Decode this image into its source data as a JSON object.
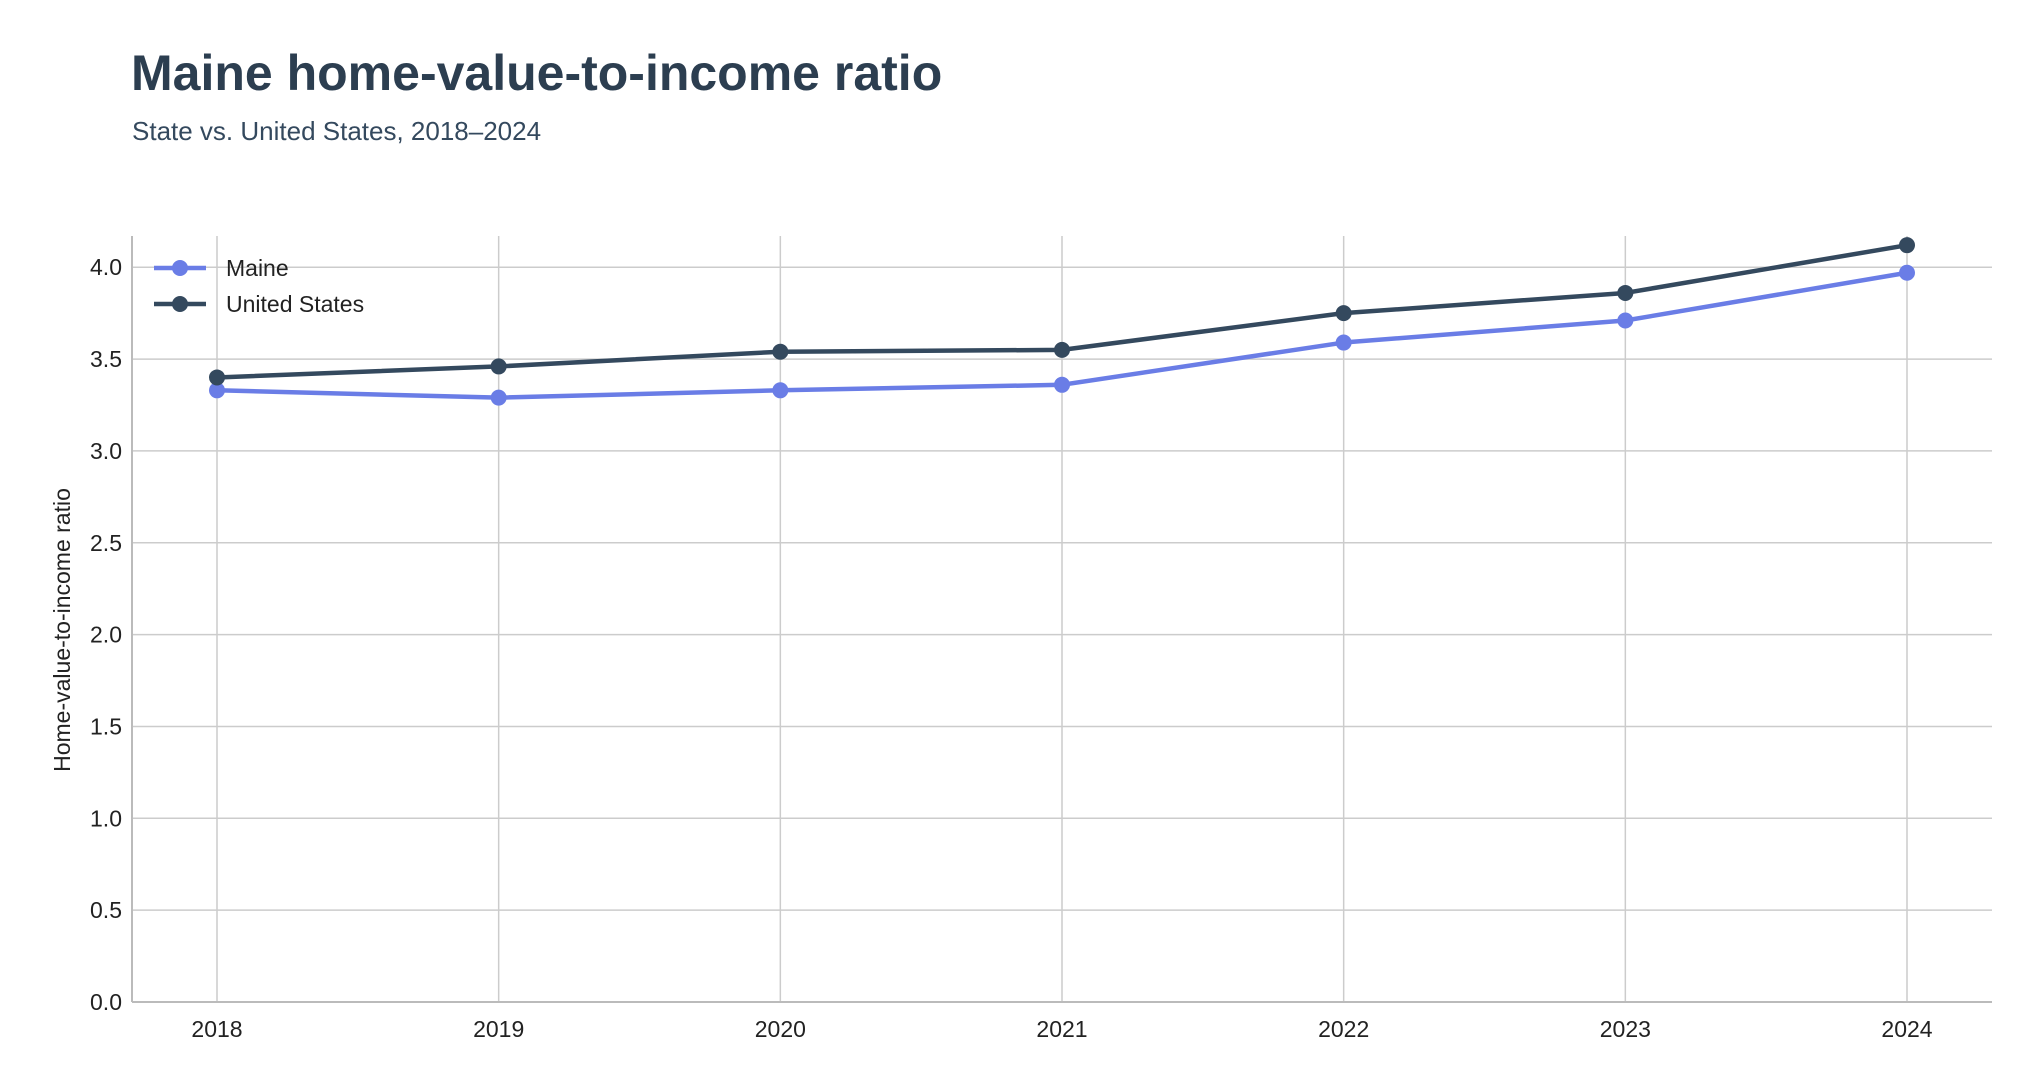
{
  "chart_data": {
    "type": "line",
    "title": "Maine home-value-to-income ratio",
    "subtitle": "State vs. United States, 2018–2024",
    "xlabel": "",
    "ylabel": "Home-value-to-income ratio",
    "x": [
      "2018",
      "2019",
      "2020",
      "2021",
      "2022",
      "2023",
      "2024"
    ],
    "series": [
      {
        "name": "Maine",
        "color": "#6a7de6",
        "values": [
          3.33,
          3.29,
          3.33,
          3.36,
          3.59,
          3.71,
          3.97
        ]
      },
      {
        "name": "United States",
        "color": "#34495e",
        "values": [
          3.4,
          3.46,
          3.54,
          3.55,
          3.75,
          3.86,
          4.12
        ]
      }
    ],
    "ylim": [
      0,
      4.17
    ],
    "yticks": [
      "0.0",
      "0.5",
      "1.0",
      "1.5",
      "2.0",
      "2.5",
      "3.0",
      "3.5",
      "4.0"
    ],
    "grid": true,
    "legend_position": "top-left"
  }
}
